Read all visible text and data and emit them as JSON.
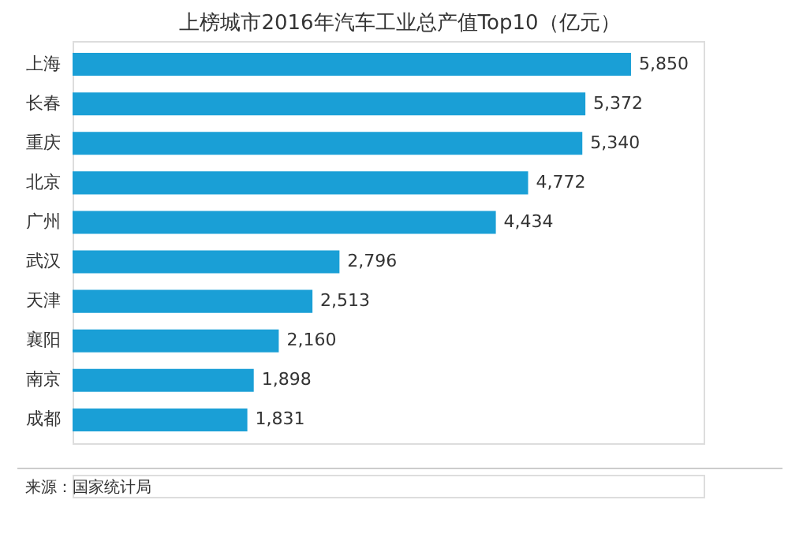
{
  "chart_data": {
    "type": "bar",
    "orientation": "horizontal",
    "title": "上榜城市2016年汽车工业总产值Top10（亿元）",
    "categories": [
      "上海",
      "长春",
      "重庆",
      "北京",
      "广州",
      "武汉",
      "天津",
      "襄阳",
      "南京",
      "成都"
    ],
    "values": [
      5850,
      5372,
      5340,
      4772,
      4434,
      2796,
      2513,
      2160,
      1898,
      1831
    ],
    "value_labels": [
      "5,850",
      "5,372",
      "5,340",
      "4,772",
      "4,434",
      "2,796",
      "2,513",
      "2,160",
      "1,898",
      "1,831"
    ],
    "color": "#1a9fd6",
    "grid": false,
    "annotations": [
      "来源：国家统计局"
    ]
  }
}
